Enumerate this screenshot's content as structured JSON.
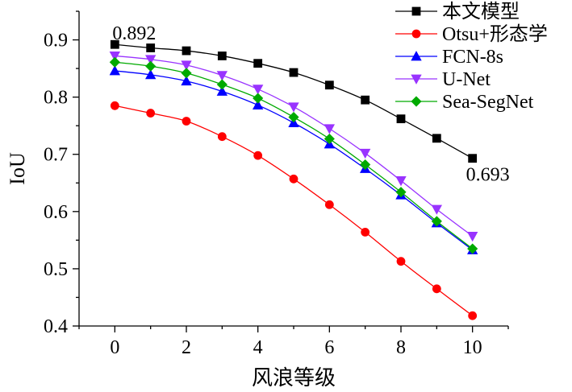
{
  "chart_data": {
    "type": "line",
    "xlabel": "风浪等级",
    "ylabel": "IoU",
    "xlim": [
      -1,
      11
    ],
    "ylim": [
      0.4,
      0.95
    ],
    "xticks": [
      0,
      2,
      4,
      6,
      8,
      10
    ],
    "yticks": [
      0.4,
      0.5,
      0.6,
      0.7,
      0.8,
      0.9
    ],
    "xtick_labels": [
      "0",
      "2",
      "4",
      "6",
      "8",
      "10"
    ],
    "ytick_labels": [
      "0.4",
      "0.5",
      "0.6",
      "0.7",
      "0.8",
      "0.9"
    ],
    "grid": false,
    "legend_position": "top-right",
    "x": [
      0,
      1,
      2,
      3,
      4,
      5,
      6,
      7,
      8,
      9,
      10
    ],
    "series": [
      {
        "name": "本文模型",
        "color": "#000000",
        "marker": "square",
        "values": [
          0.892,
          0.886,
          0.881,
          0.872,
          0.859,
          0.843,
          0.821,
          0.795,
          0.762,
          0.728,
          0.693
        ]
      },
      {
        "name": "Otsu+形态学",
        "color": "#ff0000",
        "marker": "circle",
        "values": [
          0.785,
          0.772,
          0.758,
          0.731,
          0.698,
          0.657,
          0.612,
          0.564,
          0.513,
          0.465,
          0.418
        ]
      },
      {
        "name": "FCN-8s",
        "color": "#0000ff",
        "marker": "triangle-up",
        "values": [
          0.846,
          0.839,
          0.828,
          0.81,
          0.786,
          0.755,
          0.718,
          0.675,
          0.629,
          0.58,
          0.533
        ]
      },
      {
        "name": "U-Net",
        "color": "#9933ff",
        "marker": "triangle-down",
        "values": [
          0.872,
          0.866,
          0.856,
          0.838,
          0.814,
          0.783,
          0.745,
          0.702,
          0.654,
          0.604,
          0.557
        ]
      },
      {
        "name": "Sea-SegNet",
        "color": "#00aa00",
        "marker": "diamond",
        "values": [
          0.861,
          0.854,
          0.842,
          0.822,
          0.798,
          0.765,
          0.727,
          0.682,
          0.634,
          0.583,
          0.535
        ]
      }
    ],
    "annotations": [
      {
        "text": "0.892",
        "x": 0,
        "y": 0.892
      },
      {
        "text": "0.693",
        "x": 10,
        "y": 0.693
      }
    ]
  }
}
